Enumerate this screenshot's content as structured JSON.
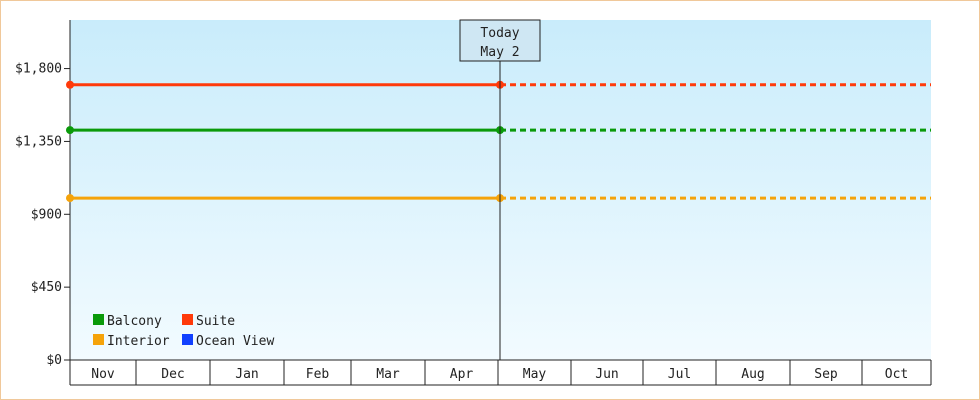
{
  "chart_data": {
    "type": "line",
    "title": "",
    "xlabel": "",
    "ylabel": "",
    "categories": [
      "Nov",
      "Dec",
      "Jan",
      "Feb",
      "Mar",
      "Apr",
      "May",
      "Jun",
      "Jul",
      "Aug",
      "Sep",
      "Oct"
    ],
    "y_ticks": [
      "$0",
      "$450",
      "$900",
      "$1,350",
      "$1,800"
    ],
    "ylim": [
      0,
      2100
    ],
    "grid": false,
    "legend_position": "bottom-left",
    "marker": {
      "line1": "Today",
      "line2": "May 2",
      "x": "May 2"
    },
    "series": [
      {
        "name": "Balcony",
        "color": "#0a9a0a",
        "value": 1420
      },
      {
        "name": "Suite",
        "color": "#ff3a0a",
        "value": 1700
      },
      {
        "name": "Interior",
        "color": "#f5a30a",
        "value": 1000
      },
      {
        "name": "Ocean View",
        "color": "#1040ff",
        "value": null
      }
    ],
    "solid_until": "May 2",
    "dotted_after": "May 2"
  }
}
